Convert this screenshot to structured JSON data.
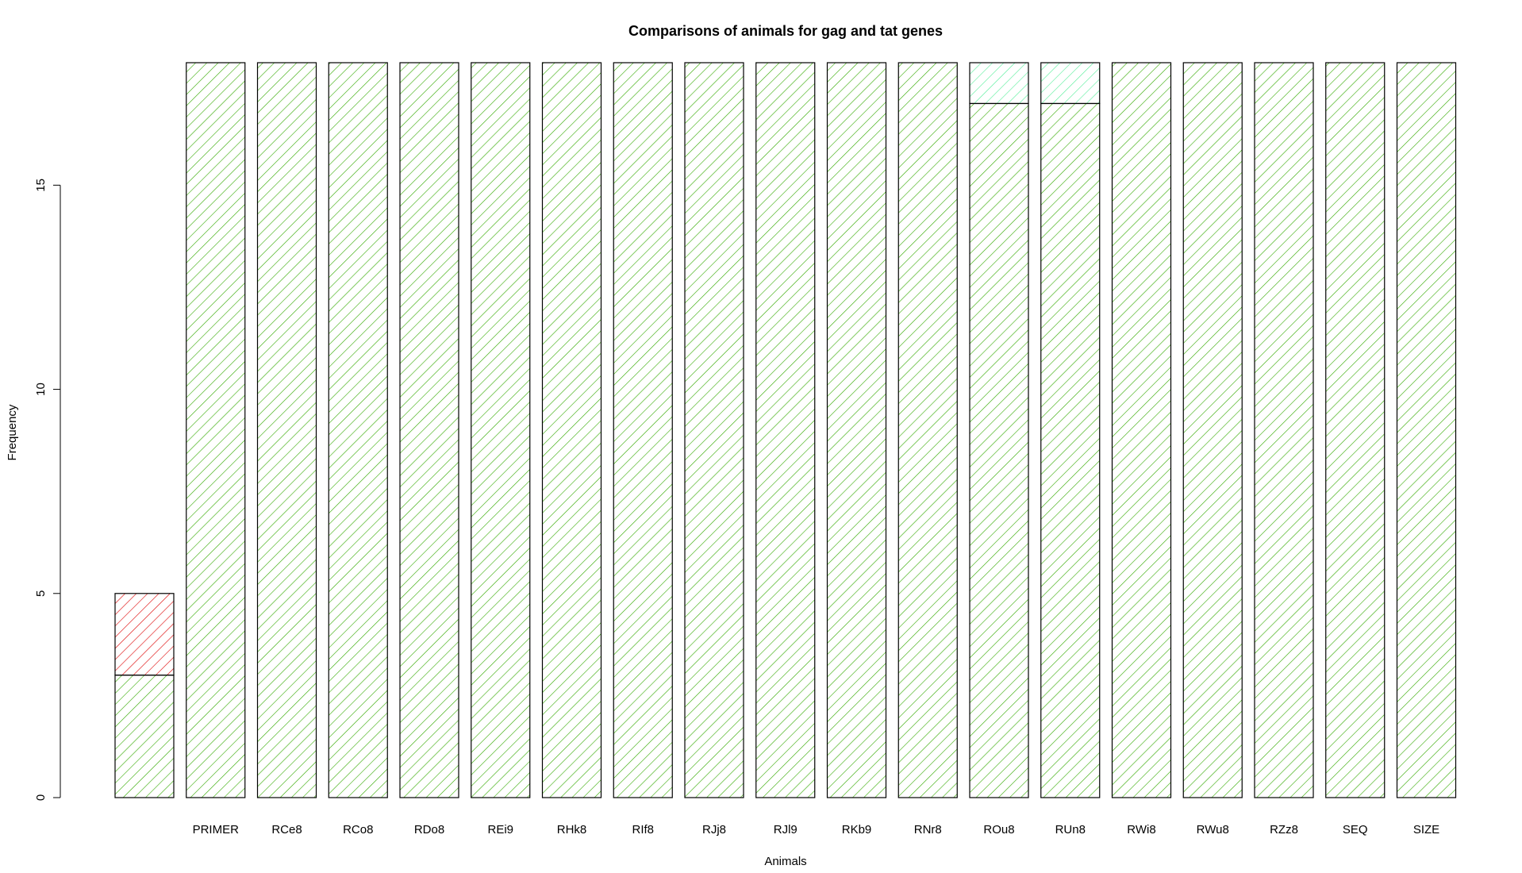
{
  "chart_data": {
    "type": "bar",
    "stacked": true,
    "title": "Comparisons of animals for gag and tat genes",
    "xlabel": "Animals",
    "ylabel": "Frequency",
    "ylim": [
      0,
      18
    ],
    "yticks": [
      0,
      5,
      10,
      15
    ],
    "grid": false,
    "legend": "none",
    "categories": [
      "",
      "PRIMER",
      "RCe8",
      "RCo8",
      "RDo8",
      "REi9",
      "RHk8",
      "RIf8",
      "RJj8",
      "RJl9",
      "RKb9",
      "RNr8",
      "ROu8",
      "RUn8",
      "RWi8",
      "RWu8",
      "RZz8",
      "SEQ",
      "SIZE"
    ],
    "series": [
      {
        "name": "bottom",
        "color": "#33aa00",
        "values": [
          3,
          18,
          18,
          18,
          18,
          18,
          18,
          18,
          18,
          18,
          18,
          18,
          17,
          17,
          18,
          18,
          18,
          18,
          18
        ]
      },
      {
        "name": "top",
        "colors": [
          "#dd0000",
          "#33aa00",
          "#33aa00",
          "#33aa00",
          "#33aa00",
          "#33aa00",
          "#33aa00",
          "#33aa00",
          "#33aa00",
          "#33aa00",
          "#33aa00",
          "#33aa00",
          "#55ee99",
          "#55ee99",
          "#33aa00",
          "#33aa00",
          "#33aa00",
          "#33aa00",
          "#33aa00"
        ],
        "values": [
          2,
          0,
          0,
          0,
          0,
          0,
          0,
          0,
          0,
          0,
          0,
          0,
          1,
          1,
          0,
          0,
          0,
          0,
          0
        ]
      }
    ]
  }
}
